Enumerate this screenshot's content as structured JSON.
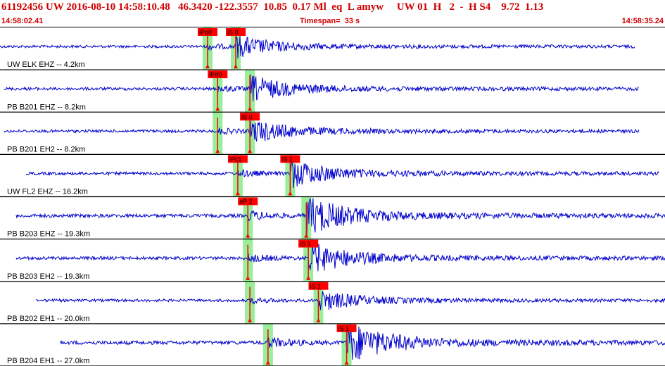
{
  "header": {
    "summary": "61192456 UW 2016-08-10 14:58:10.48   46.3420 -122.3557  10.85  0.17 Ml  eq  L amyw     UW 01  H   2  -  H S4    9.72  1.13",
    "start_time": "14:58:02.41",
    "timespan": "Timespan=  33 s",
    "end_time": "14:58:35.24"
  },
  "colors": {
    "title": "#d00000",
    "trace": "#0000cc",
    "pick_line": "#ff0000",
    "pick_box": "#ff0000",
    "window": "#99ee99",
    "border": "#000000"
  },
  "traces": [
    {
      "label": "UW ELK EHZ -- 4.2km",
      "start_s": 0.0,
      "end_s": 31.5,
      "amp": 0.45,
      "picks": [
        {
          "text": "iPd0",
          "phase": "P",
          "t_s": 10.3
        },
        {
          "text": "iS 0",
          "phase": "S",
          "t_s": 11.7
        }
      ]
    },
    {
      "label": "PB B201 EHZ -- 8.2km",
      "start_s": 0.2,
      "end_s": 31.7,
      "amp": 0.55,
      "picks": [
        {
          "text": "iPd0",
          "phase": "P",
          "t_s": 10.8
        },
        {
          "text": "",
          "phase": "S",
          "t_s": 12.4
        }
      ]
    },
    {
      "label": "PB B201 EH2 -- 8.2km",
      "start_s": 0.2,
      "end_s": 31.7,
      "amp": 0.5,
      "picks": [
        {
          "text": "",
          "phase": "P",
          "t_s": 10.8
        },
        {
          "text": "iS 0",
          "phase": "S",
          "t_s": 12.4
        }
      ]
    },
    {
      "label": "UW FL2 EHZ -- 16.2km",
      "start_s": 1.3,
      "end_s": 32.7,
      "amp": 0.6,
      "picks": [
        {
          "text": "iPc1",
          "phase": "P",
          "t_s": 11.8
        },
        {
          "text": "iS 1",
          "phase": "S",
          "t_s": 14.4
        }
      ]
    },
    {
      "label": "PB B203 EHZ -- 19.3km",
      "start_s": 0.8,
      "end_s": 33.0,
      "amp": 0.85,
      "picks": [
        {
          "text": "eP 2",
          "phase": "P",
          "t_s": 12.3
        },
        {
          "text": "",
          "phase": "S",
          "t_s": 15.2
        }
      ]
    },
    {
      "label": "PB B203 EH2 -- 19.3km",
      "start_s": 0.8,
      "end_s": 33.0,
      "amp": 0.7,
      "picks": [
        {
          "text": "",
          "phase": "P",
          "t_s": 12.3
        },
        {
          "text": "iS 1",
          "phase": "S",
          "t_s": 15.3
        }
      ]
    },
    {
      "label": "PB B202 EH1 -- 20.0km",
      "start_s": 1.8,
      "end_s": 33.2,
      "amp": 0.45,
      "picks": [
        {
          "text": "",
          "phase": "P",
          "t_s": 12.4
        },
        {
          "text": "iS 1",
          "phase": "S",
          "t_s": 15.8
        }
      ]
    },
    {
      "label": "PB B204 EH1 -- 27.0km",
      "start_s": 3.0,
      "end_s": 33.9,
      "amp": 0.9,
      "picks": [
        {
          "text": "",
          "phase": "P",
          "t_s": 13.3
        },
        {
          "text": "iS 1",
          "phase": "S",
          "t_s": 17.2
        }
      ]
    }
  ]
}
